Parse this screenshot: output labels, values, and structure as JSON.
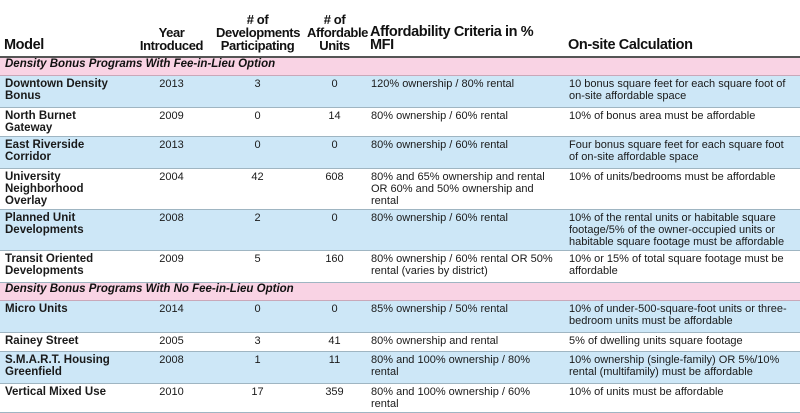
{
  "headers": {
    "model": "Model",
    "year": "Year Introduced",
    "developments": "# of Developments Participating",
    "units": "# of Affordable Units",
    "criteria": "Affordability Criteria in % MFI",
    "calculation": "On-site Calculation"
  },
  "sections": [
    {
      "title": "Density Bonus Programs With Fee-in-Lieu Option",
      "rows": [
        {
          "model": "Downtown Density Bonus",
          "year": "2013",
          "developments": "3",
          "units": "0",
          "criteria": "120% ownership / 80% rental",
          "calculation": "10 bonus square feet for each square foot of on-site affordable space"
        },
        {
          "model": "North Burnet Gateway",
          "year": "2009",
          "developments": "0",
          "units": "14",
          "criteria": "80% ownership / 60% rental",
          "calculation": "10% of bonus area must be affordable"
        },
        {
          "model": "East Riverside Corridor",
          "year": "2013",
          "developments": "0",
          "units": "0",
          "criteria": "80% ownership / 60% rental",
          "calculation": "Four bonus square feet for each square foot of on-site affordable space"
        },
        {
          "model": "University Neighborhood Overlay",
          "year": "2004",
          "developments": "42",
          "units": "608",
          "criteria": "80% and 65% ownership and rental OR 60% and 50% ownership and rental",
          "calculation": "10% of units/bedrooms must be affordable"
        },
        {
          "model": "Planned Unit Developments",
          "year": "2008",
          "developments": "2",
          "units": "0",
          "criteria": "80% ownership / 60% rental",
          "calculation": "10% of the rental units or habitable square footage/5% of the owner-occupied units or habitable square footage must be affordable"
        },
        {
          "model": "Transit Oriented Developments",
          "year": "2009",
          "developments": "5",
          "units": "160",
          "criteria": "80% ownership / 60% rental OR 50% rental (varies by district)",
          "calculation": "10% or 15% of total square footage must be affordable"
        }
      ]
    },
    {
      "title": "Density Bonus Programs With No Fee-in-Lieu Option",
      "rows": [
        {
          "model": "Micro Units",
          "year": "2014",
          "developments": "0",
          "units": "0",
          "criteria": "85% ownership / 50% rental",
          "calculation": "10% of under-500-square-foot units or three-bedroom units must be affordable"
        },
        {
          "model": "Rainey Street",
          "year": "2005",
          "developments": "3",
          "units": "41",
          "criteria": "80% ownership and rental",
          "calculation": "5% of dwelling units square footage"
        },
        {
          "model": "S.M.A.R.T. Housing Greenfield",
          "year": "2008",
          "developments": "1",
          "units": "11",
          "criteria": "80% and 100% ownership / 80% rental",
          "calculation": "10% ownership (single-family) OR 5%/10% rental (multifamily) must be affordable"
        },
        {
          "model": "Vertical Mixed Use",
          "year": "2010",
          "developments": "17",
          "units": "359",
          "criteria": "80% and 100% ownership / 60% rental",
          "calculation": "10% of units must be affordable"
        }
      ]
    }
  ]
}
